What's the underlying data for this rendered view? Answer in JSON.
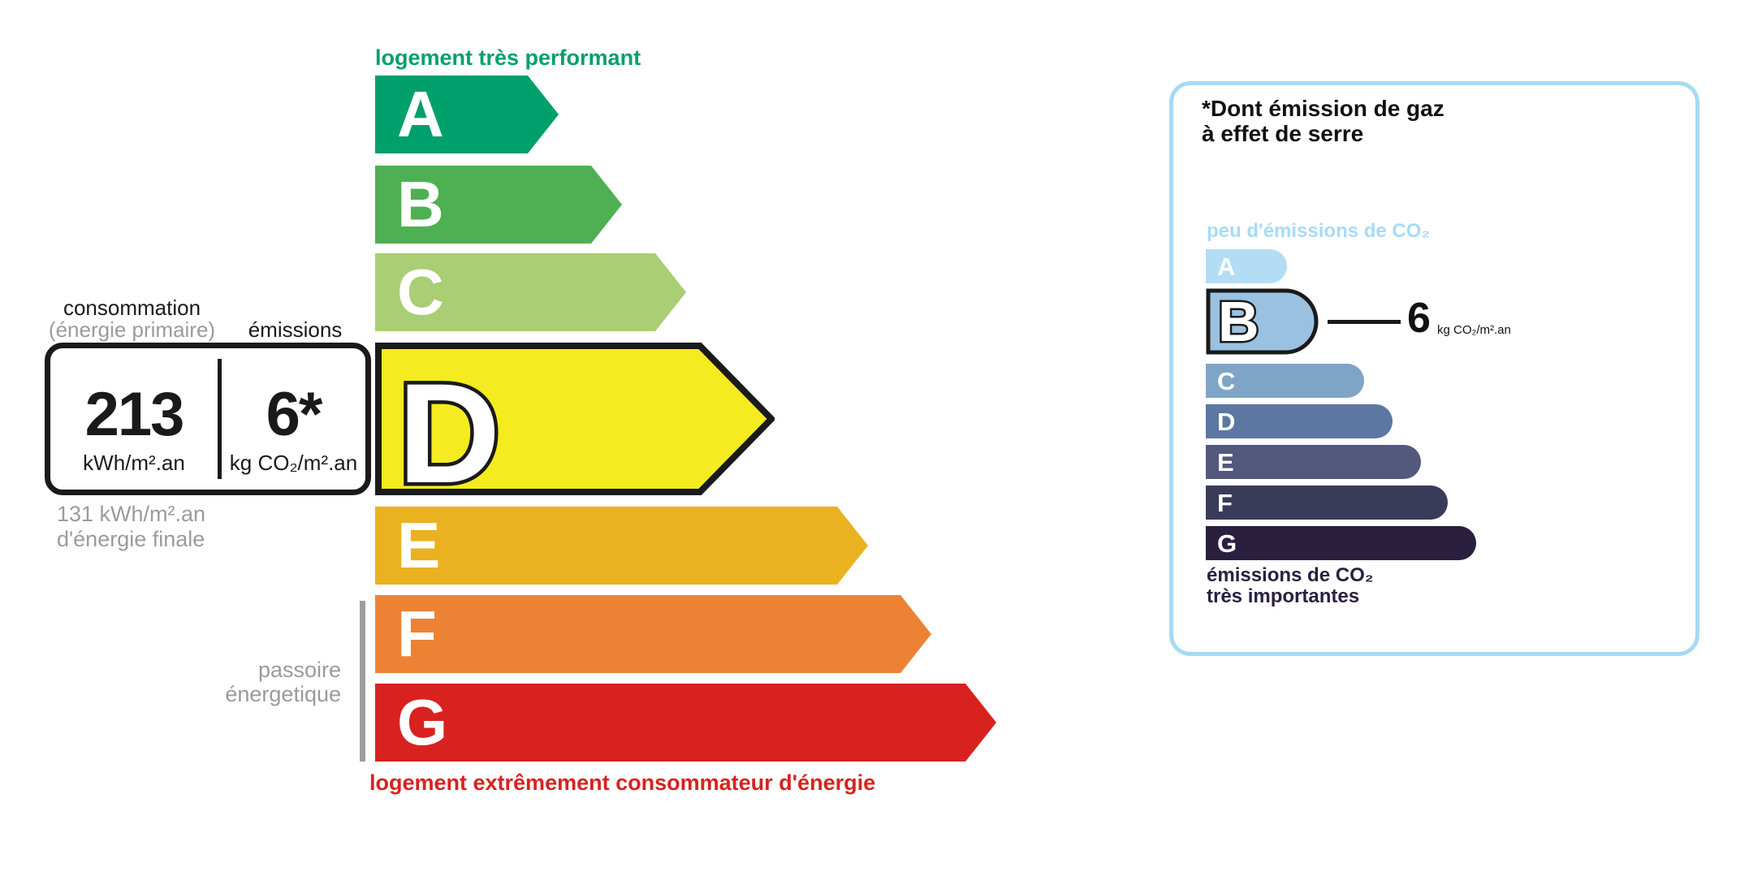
{
  "epc": {
    "top_label": "logement très performant",
    "bottom_label": "logement extrêmement consommateur d'énergie",
    "passoire_label": "passoire\nénergetique",
    "classes": [
      {
        "letter": "A",
        "color": "#00a06d"
      },
      {
        "letter": "B",
        "color": "#4eb052"
      },
      {
        "letter": "C",
        "color": "#a9ce73"
      },
      {
        "letter": "D",
        "color": "#f4eb20"
      },
      {
        "letter": "E",
        "color": "#eab220"
      },
      {
        "letter": "F",
        "color": "#ee8234"
      },
      {
        "letter": "G",
        "color": "#d8221f"
      }
    ],
    "current_class": "D",
    "consumption": {
      "header_line1": "consommation",
      "header_line2": "(énergie primaire)",
      "header_emissions": "émissions",
      "value": "213",
      "unit": "kWh/m².an",
      "emission_value": "6*",
      "emission_unit": "kg CO₂/m².an",
      "final_energy_line1": "131 kWh/m².an",
      "final_energy_line2": "d'énergie finale"
    }
  },
  "co2_panel": {
    "title_line1": "*Dont émission de gaz",
    "title_line2": "à effet de serre",
    "low_label": "peu d'émissions de CO₂",
    "high_label_line1": "émissions de CO₂",
    "high_label_line2": "très importantes",
    "low_label_color": "#a8dbf5",
    "high_label_color": "#2a2040",
    "border_color": "#a7daf2",
    "current_class": "B",
    "value": "6",
    "unit": "kg CO₂/m².an",
    "bars": [
      {
        "letter": "A",
        "color": "#b3ddf4"
      },
      {
        "letter": "B",
        "color": "#9ac1e0"
      },
      {
        "letter": "C",
        "color": "#7ea4c6"
      },
      {
        "letter": "D",
        "color": "#5b77a2"
      },
      {
        "letter": "E",
        "color": "#53597c"
      },
      {
        "letter": "F",
        "color": "#3a3b59"
      },
      {
        "letter": "G",
        "color": "#2a1f3e"
      }
    ]
  },
  "chart_data": [
    {
      "type": "bar",
      "title": "Étiquette énergie (DPE)",
      "categories": [
        "A",
        "B",
        "C",
        "D",
        "E",
        "F",
        "G"
      ],
      "values": [
        226,
        304,
        383,
        490,
        607,
        685,
        765
      ],
      "highlighted_category": "D",
      "highlight_value_primary": "213 kWh/m².an",
      "highlight_value_emissions": "6* kg CO₂/m².an",
      "annotation_top": "logement très performant",
      "annotation_bottom": "logement extrêmement consommateur d'énergie",
      "legend_position": "none"
    },
    {
      "type": "bar",
      "title": "*Dont émission de gaz à effet de serre",
      "categories": [
        "A",
        "B",
        "C",
        "D",
        "E",
        "F",
        "G"
      ],
      "values": [
        100,
        140,
        195,
        230,
        265,
        298,
        333
      ],
      "highlighted_category": "B",
      "highlight_value": "6 kg CO₂/m².an",
      "annotation_top": "peu d'émissions de CO₂",
      "annotation_bottom": "émissions de CO₂ très importantes",
      "legend_position": "none"
    }
  ]
}
